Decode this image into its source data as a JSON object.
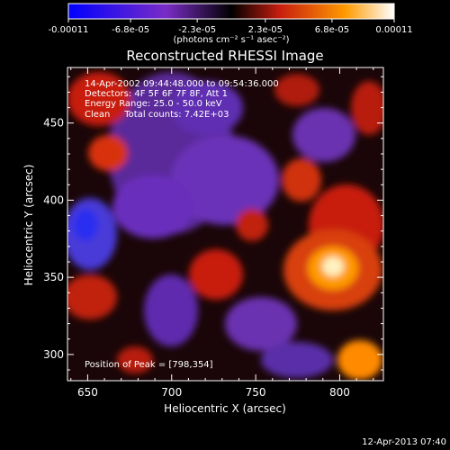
{
  "chart_data": {
    "type": "heatmap",
    "title": "Reconstructed RHESSI Image",
    "xlabel": "Heliocentric X (arcsec)",
    "ylabel": "Heliocentric Y (arcsec)",
    "xlim": [
      638,
      826
    ],
    "ylim": [
      283,
      486
    ],
    "x_ticks": [
      650,
      700,
      750,
      800
    ],
    "y_ticks": [
      300,
      350,
      400,
      450
    ],
    "colorbar": {
      "range": [
        -0.00011,
        0.00011
      ],
      "tick_labels": [
        "-0.00011",
        "-6.8e-05",
        "-2.3e-05",
        "2.3e-05",
        "6.8e-05",
        "0.00011"
      ],
      "units_text": "(photons cm⁻² s⁻¹ asec⁻²)",
      "colormap": [
        "#0000ff",
        "#7a2cc6",
        "#000000",
        "#c81e0f",
        "#ff9a00",
        "#ffffff"
      ]
    },
    "annotations": [
      "14-Apr-2002 09:44:48.000 to 09:54:36.000",
      "Detectors: 4F 5F 6F 7F 8F, Att 1",
      "Energy Range: 25.0 - 50.0 keV",
      "Clean     Total counts: 7.42E+03",
      "Position of Peak = [798,354]"
    ],
    "peak": {
      "x": 798,
      "y": 354
    },
    "timestamp": "12-Apr-2013 07:40"
  }
}
